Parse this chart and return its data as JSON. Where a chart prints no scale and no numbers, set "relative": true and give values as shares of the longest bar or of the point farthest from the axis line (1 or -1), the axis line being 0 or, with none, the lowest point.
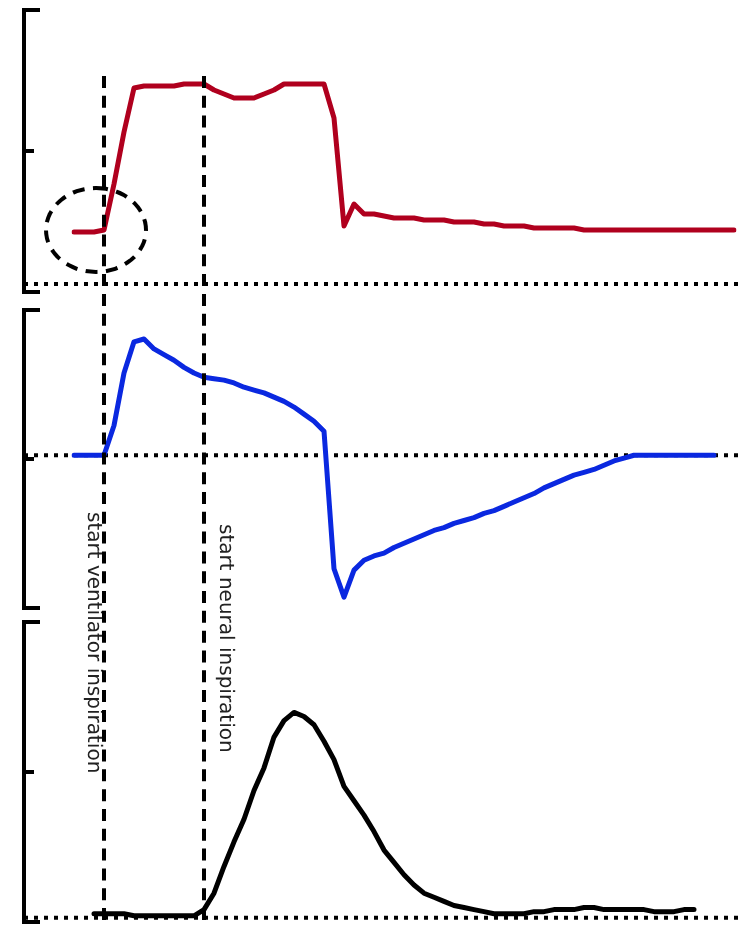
{
  "chart_data": [
    {
      "type": "line",
      "relative": true,
      "legend": false,
      "marker": "none",
      "line_style": "solid",
      "categories": [
        null,
        null,
        null,
        null,
        null,
        null,
        null,
        null,
        null,
        null,
        null,
        null,
        null,
        null,
        null,
        null,
        null,
        null,
        null,
        null,
        null,
        null,
        null,
        null,
        null,
        null,
        null,
        null,
        null,
        null,
        null,
        null,
        null,
        null,
        null,
        null,
        null,
        null,
        null,
        null,
        null,
        null,
        null,
        null,
        null,
        null,
        null,
        null,
        null,
        null,
        null,
        null,
        null,
        null,
        null,
        null,
        null,
        null,
        null,
        null,
        null,
        null,
        null,
        null,
        null,
        null,
        null
      ],
      "series": [
        {
          "color": "#b0001e",
          "values": [
            0.26,
            0.26,
            0.26,
            0.27,
            0.5,
            0.76,
            0.98,
            0.99,
            0.99,
            0.99,
            0.99,
            1,
            1,
            1,
            0.97,
            0.95,
            0.93,
            0.93,
            0.93,
            0.95,
            0.97,
            1,
            1,
            1,
            1,
            1,
            0.83,
            0.29,
            0.4,
            0.35,
            0.35,
            0.34,
            0.33,
            0.33,
            0.33,
            0.32,
            0.32,
            0.32,
            0.31,
            0.31,
            0.31,
            0.3,
            0.3,
            0.29,
            0.29,
            0.29,
            0.28,
            0.28,
            0.28,
            0.28,
            0.28,
            0.27,
            0.27,
            0.27,
            0.27,
            0.27,
            0.27,
            0.27,
            0.27,
            0.27,
            0.27,
            0.27,
            0.27,
            0.27,
            0.27,
            0.27,
            0.27
          ]
        }
      ]
    },
    {
      "type": "line",
      "relative": true,
      "legend": false,
      "marker": "none",
      "line_style": "solid",
      "ref_lines": [
        {
          "axis": "y",
          "value": 0,
          "color": "#000000",
          "line_style": "dotted"
        }
      ],
      "annotations": [
        "start ventilator inspiration",
        "start neural inspiration"
      ],
      "categories": [
        null,
        null,
        null,
        null,
        null,
        null,
        null,
        null,
        null,
        null,
        null,
        null,
        null,
        null,
        null,
        null,
        null,
        null,
        null,
        null,
        null,
        null,
        null,
        null,
        null,
        null,
        null,
        null,
        null,
        null,
        null,
        null,
        null,
        null,
        null,
        null,
        null,
        null,
        null,
        null,
        null,
        null,
        null,
        null,
        null,
        null,
        null,
        null,
        null,
        null,
        null,
        null,
        null,
        null,
        null,
        null,
        null,
        null,
        null,
        null,
        null,
        null,
        null,
        null,
        null,
        null,
        null
      ],
      "series": [
        {
          "color": "#0a28e0",
          "values": [
            0,
            0,
            0,
            0,
            0.21,
            0.58,
            0.8,
            0.82,
            0.75,
            0.71,
            0.67,
            0.62,
            0.58,
            0.55,
            0.54,
            0.53,
            0.51,
            0.48,
            0.46,
            0.44,
            0.41,
            0.38,
            0.34,
            0.29,
            0.24,
            0.17,
            -0.8,
            -1,
            -0.81,
            -0.74,
            -0.71,
            -0.69,
            -0.65,
            -0.62,
            -0.59,
            -0.56,
            -0.53,
            -0.51,
            -0.48,
            -0.46,
            -0.44,
            -0.41,
            -0.39,
            -0.36,
            -0.33,
            -0.3,
            -0.27,
            -0.23,
            -0.2,
            -0.17,
            -0.14,
            -0.12,
            -0.1,
            -0.07,
            -0.04,
            -0.02,
            0,
            0,
            0,
            0,
            0,
            0,
            0,
            0,
            0,
            null,
            null
          ]
        }
      ]
    },
    {
      "type": "line",
      "relative": true,
      "legend": false,
      "marker": "none",
      "line_style": "solid",
      "categories": [
        null,
        null,
        null,
        null,
        null,
        null,
        null,
        null,
        null,
        null,
        null,
        null,
        null,
        null,
        null,
        null,
        null,
        null,
        null,
        null,
        null,
        null,
        null,
        null,
        null,
        null,
        null,
        null,
        null,
        null,
        null,
        null,
        null,
        null,
        null,
        null,
        null,
        null,
        null,
        null,
        null,
        null,
        null,
        null,
        null,
        null,
        null,
        null,
        null,
        null,
        null,
        null,
        null,
        null,
        null,
        null,
        null,
        null,
        null,
        null,
        null,
        null,
        null,
        null,
        null,
        null,
        null
      ],
      "series": [
        {
          "color": "#000000",
          "values": [
            null,
            null,
            0.02,
            0.02,
            0.02,
            0.02,
            0.01,
            0.01,
            0.01,
            0.01,
            0.01,
            0.01,
            0.01,
            0.04,
            0.12,
            0.25,
            0.37,
            0.48,
            0.62,
            0.73,
            0.88,
            0.96,
            1,
            0.98,
            0.94,
            0.86,
            0.77,
            0.64,
            0.57,
            0.5,
            0.42,
            0.33,
            0.27,
            0.21,
            0.16,
            0.12,
            0.1,
            0.08,
            0.06,
            0.05,
            0.04,
            0.03,
            0.02,
            0.02,
            0.02,
            0.02,
            0.03,
            0.03,
            0.04,
            0.04,
            0.04,
            0.05,
            0.05,
            0.04,
            0.04,
            0.04,
            0.04,
            0.04,
            0.03,
            0.03,
            0.03,
            0.04,
            0.04,
            null,
            null,
            null,
            null
          ]
        }
      ]
    }
  ]
}
